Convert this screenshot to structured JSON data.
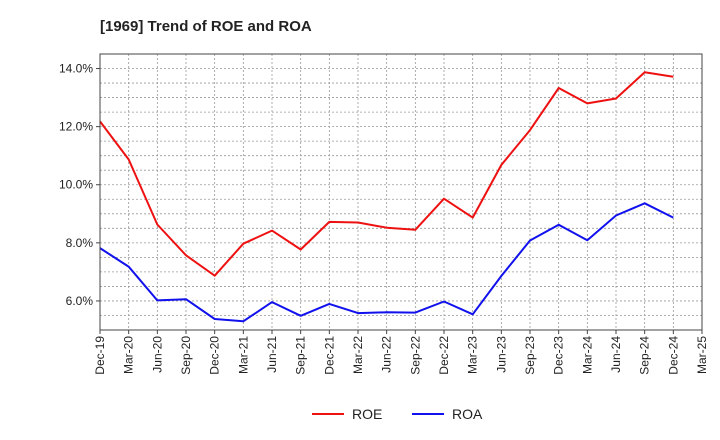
{
  "chart_data": {
    "type": "line",
    "title": "[1969]  Trend of ROE and ROA",
    "xlabel": "",
    "ylabel": "",
    "x": [
      "Dec-19",
      "Mar-20",
      "Jun-20",
      "Sep-20",
      "Dec-20",
      "Mar-21",
      "Jun-21",
      "Sep-21",
      "Dec-21",
      "Mar-22",
      "Jun-22",
      "Sep-22",
      "Dec-22",
      "Mar-23",
      "Jun-23",
      "Sep-23",
      "Dec-23",
      "Mar-24",
      "Jun-24",
      "Sep-24",
      "Dec-24",
      "Mar-25"
    ],
    "y_ticks": [
      "6.0%",
      "8.0%",
      "10.0%",
      "12.0%",
      "14.0%"
    ],
    "ylim": [
      5.0,
      14.5
    ],
    "grid": true,
    "legend_position": "bottom-center",
    "series": [
      {
        "name": "ROE",
        "color": "#ee1111",
        "values": [
          12.18,
          10.87,
          8.63,
          7.57,
          6.87,
          7.97,
          8.42,
          7.77,
          8.72,
          8.7,
          8.52,
          8.45,
          9.52,
          8.87,
          10.68,
          11.88,
          13.33,
          12.8,
          12.97,
          13.87,
          13.72,
          null
        ]
      },
      {
        "name": "ROA",
        "color": "#1111ee",
        "values": [
          7.82,
          7.18,
          6.02,
          6.06,
          5.38,
          5.3,
          5.96,
          5.49,
          5.9,
          5.58,
          5.61,
          5.6,
          5.98,
          5.54,
          6.86,
          8.08,
          8.62,
          8.09,
          8.94,
          9.36,
          8.87,
          null
        ]
      }
    ]
  }
}
